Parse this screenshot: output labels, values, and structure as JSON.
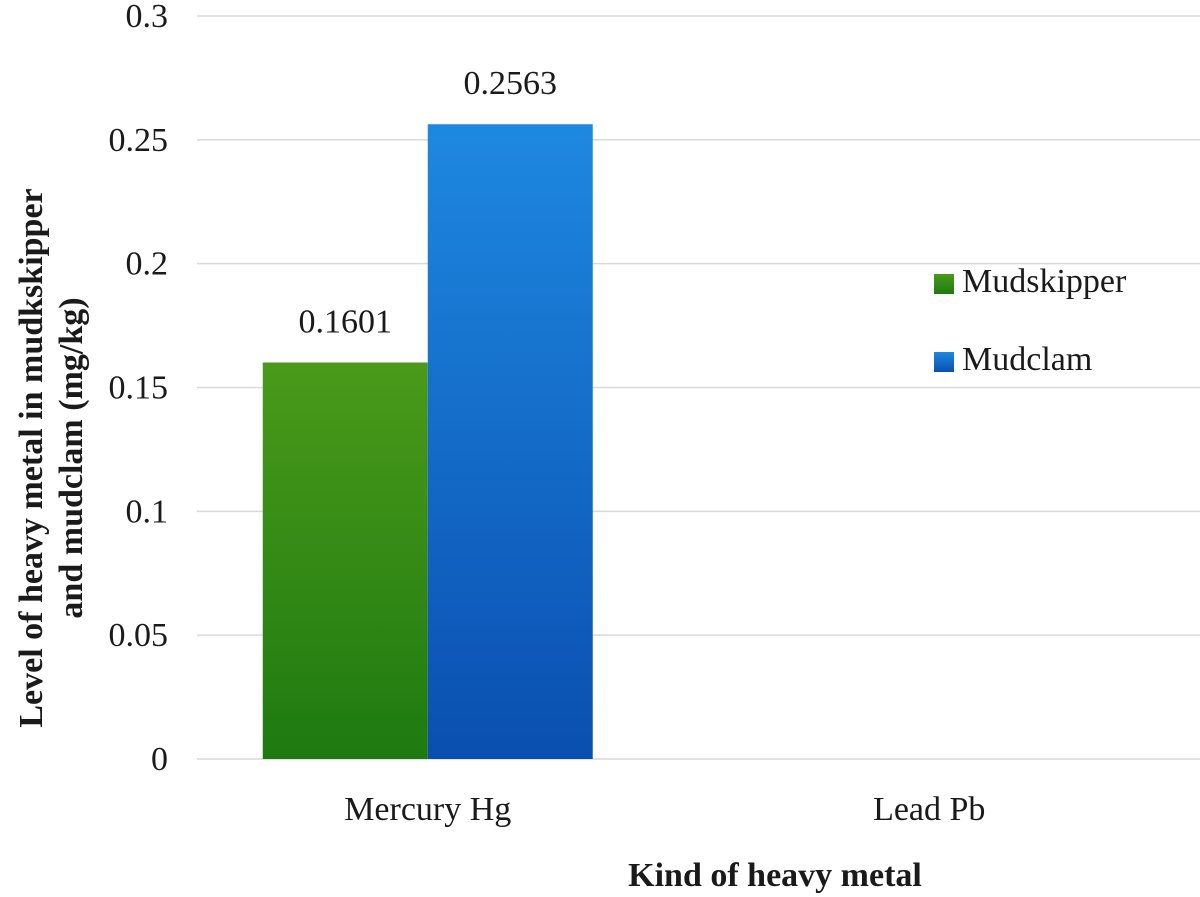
{
  "chart_data": {
    "type": "bar",
    "title": "",
    "xlabel": "Kind of heavy metal",
    "ylabel": [
      "Level of heavy metal in mudkskipper",
      "and mudclam (mg/kg)"
    ],
    "categories": [
      "Mercury Hg",
      "Lead Pb"
    ],
    "series": [
      {
        "name": "Mudskipper",
        "values": [
          0.1601,
          0
        ],
        "labels": [
          "0.1601",
          null
        ],
        "color_top": "#4a9a1a",
        "color_bottom": "#1e7a10"
      },
      {
        "name": "Mudclam",
        "values": [
          0.2563,
          0
        ],
        "labels": [
          "0.2563",
          null
        ],
        "color_top": "#1e88e0",
        "color_bottom": "#0a4fb0"
      }
    ],
    "ylim": [
      0,
      0.3
    ],
    "yticks": [
      0,
      0.05,
      0.1,
      0.15,
      0.2,
      0.25,
      0.3
    ],
    "ytick_labels": [
      "0",
      "0.05",
      "0.1",
      "0.15",
      "0.2",
      "0.25",
      "0.3"
    ],
    "grid": true,
    "legend_position": "right"
  }
}
